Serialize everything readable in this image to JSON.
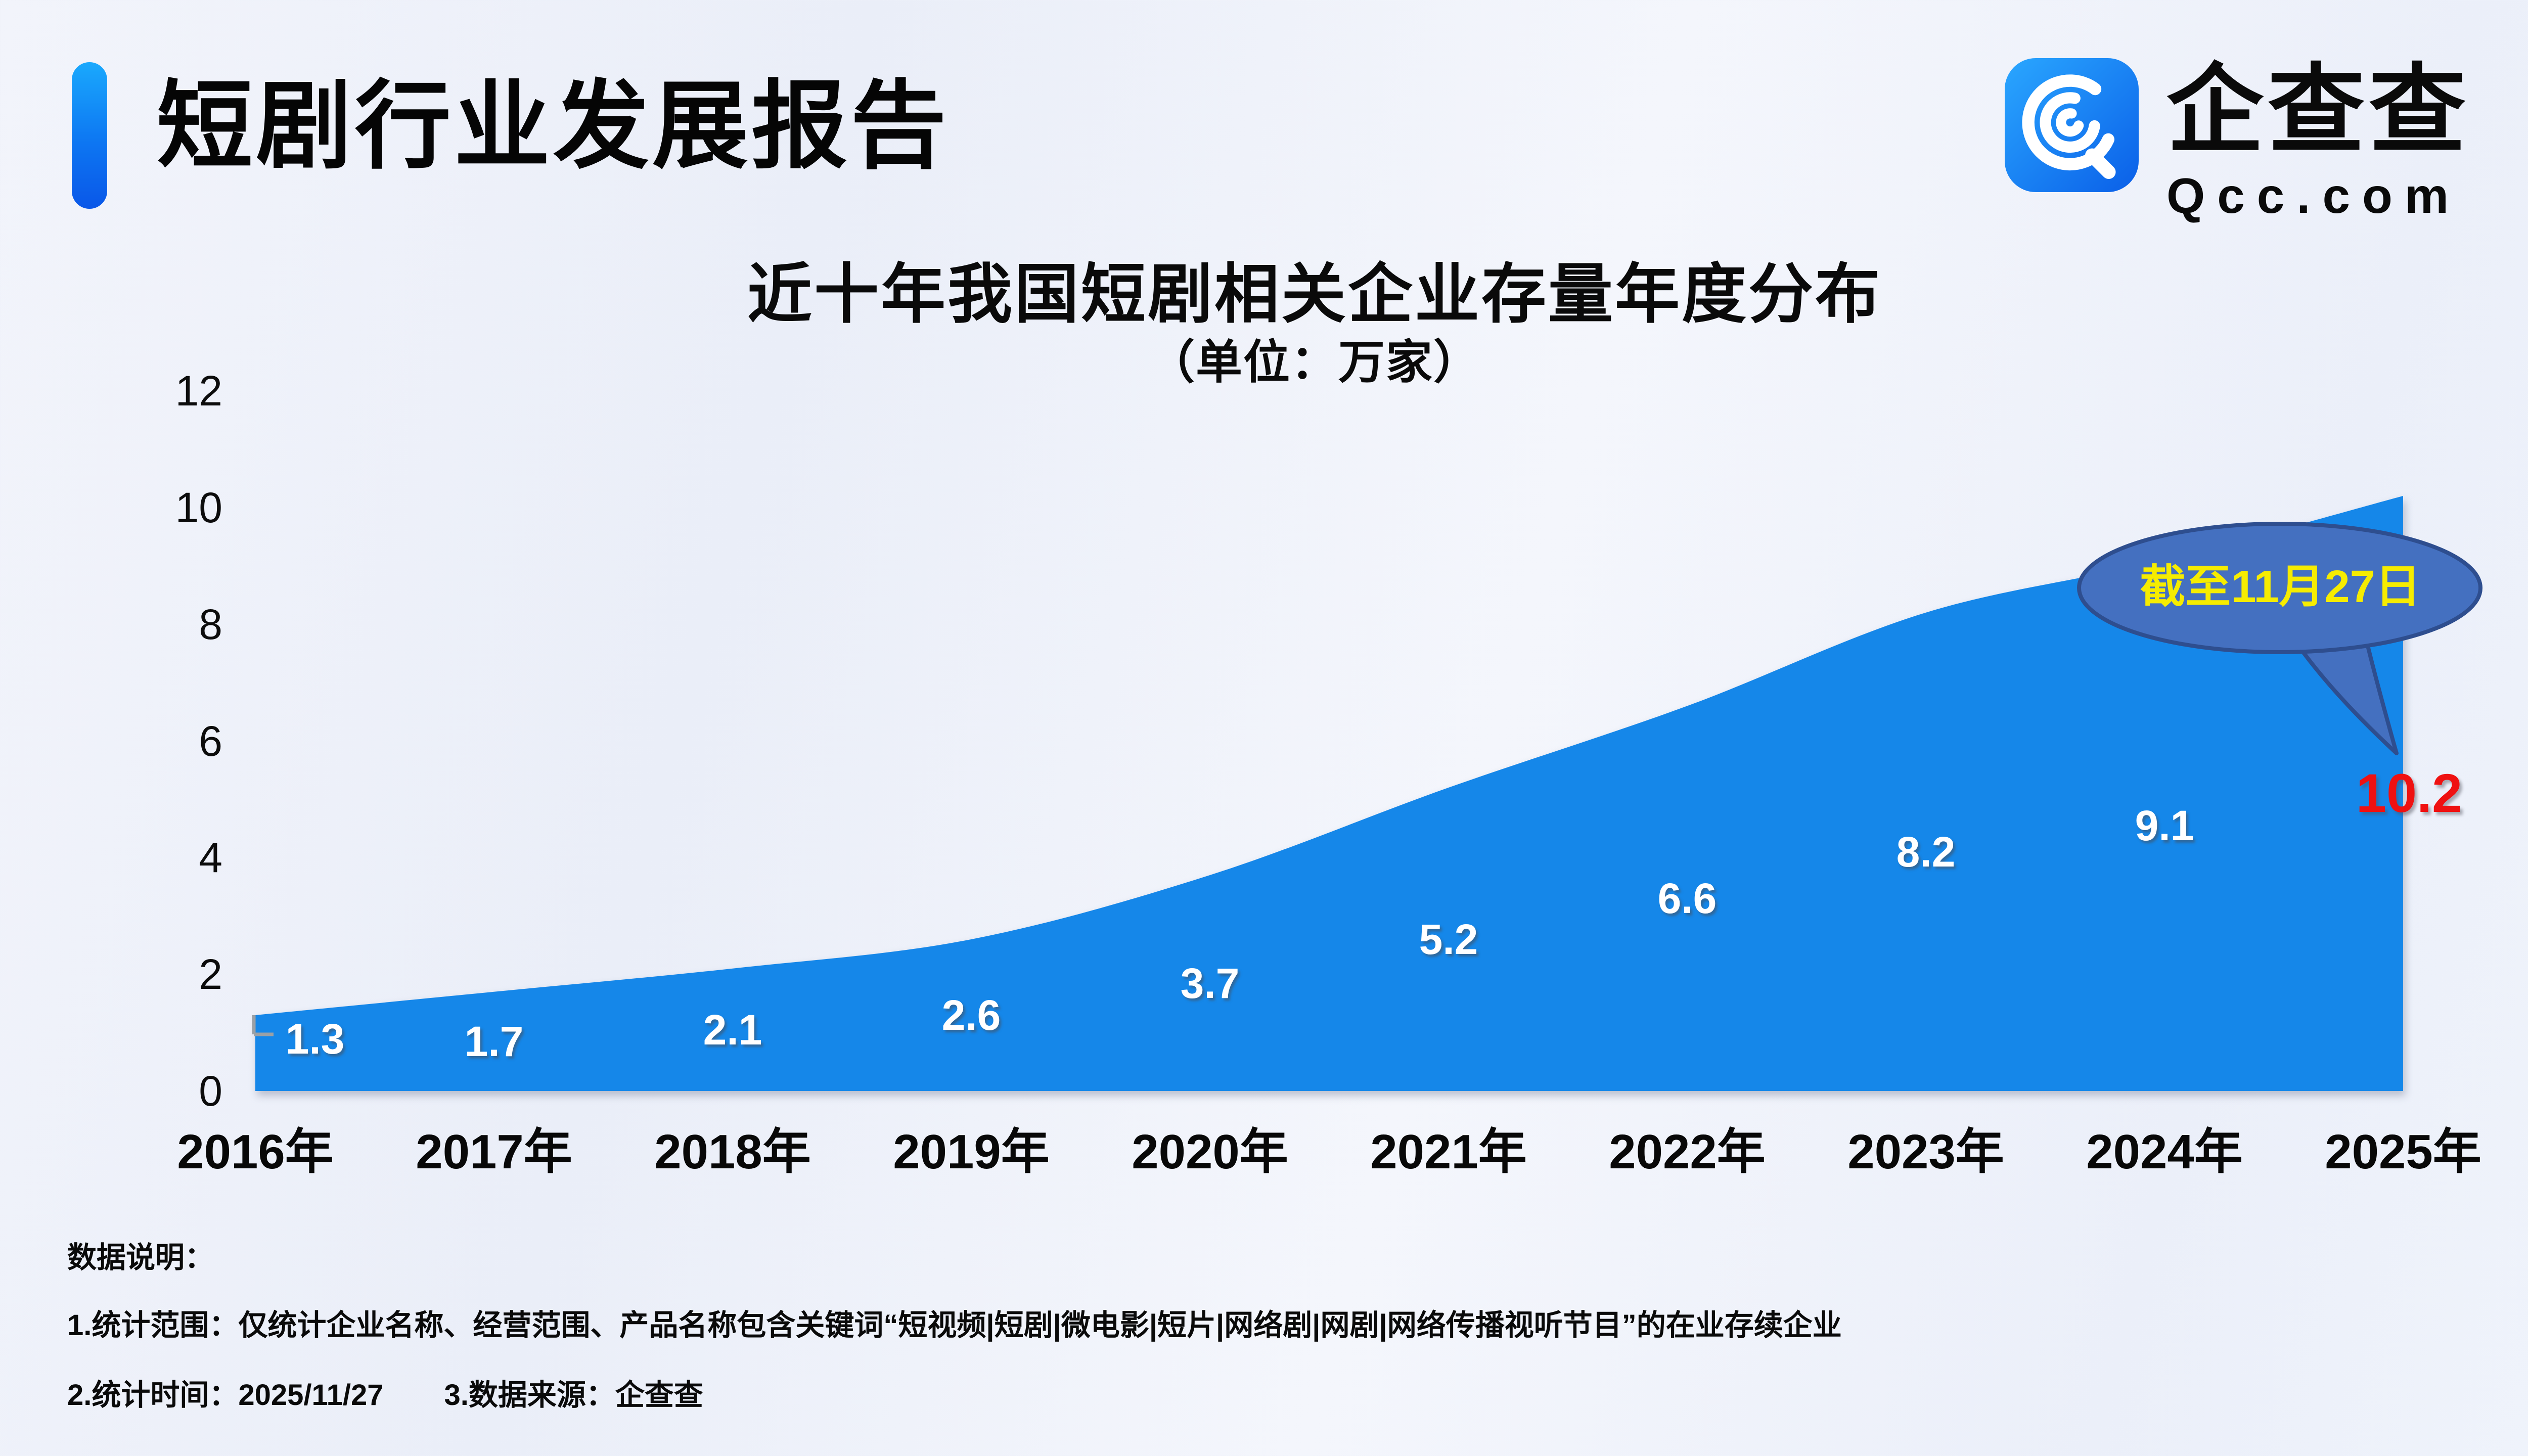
{
  "header": {
    "title": "短剧行业发展报告",
    "accent_color": "#0d76f2"
  },
  "logo": {
    "name": "企查查",
    "domain": "Qcc.com",
    "brand_color": "#1186ee"
  },
  "chart": {
    "title": "近十年我国短剧相关企业存量年度分布",
    "subtitle": "（单位：万家）",
    "area_color": "#1587e9",
    "label_color": "#ffffff",
    "highlight_color": "#ef1111",
    "tick_color": "#9aa0a6",
    "callout": {
      "text": "截至11月27日",
      "fill": "#4470c0",
      "border": "#2e4e8f",
      "text_color": "#f6ec00"
    }
  },
  "chart_data": {
    "type": "area",
    "title": "近十年我国短剧相关企业存量年度分布",
    "unit": "万家",
    "categories": [
      "2016年",
      "2017年",
      "2018年",
      "2019年",
      "2020年",
      "2021年",
      "2022年",
      "2023年",
      "2024年",
      "2025年"
    ],
    "values": [
      1.3,
      1.7,
      2.1,
      2.6,
      3.7,
      5.2,
      6.6,
      8.2,
      9.1,
      10.2
    ],
    "ylim": [
      0,
      12
    ],
    "yticks": [
      0,
      2,
      4,
      6,
      8,
      10,
      12
    ],
    "grid": false,
    "legend": false,
    "annotation": "截至11月27日",
    "highlighted_value": 10.2
  },
  "footer": {
    "heading": "数据说明：",
    "line1": "1.统计范围：仅统计企业名称、经营范围、产品名称包含关键词“短视频|短剧|微电影|短片|网络剧|网剧|网络传播视听节目”的在业存续企业",
    "line2_time": "2.统计时间：2025/11/27",
    "line2_source": "3.数据来源：企查查"
  }
}
